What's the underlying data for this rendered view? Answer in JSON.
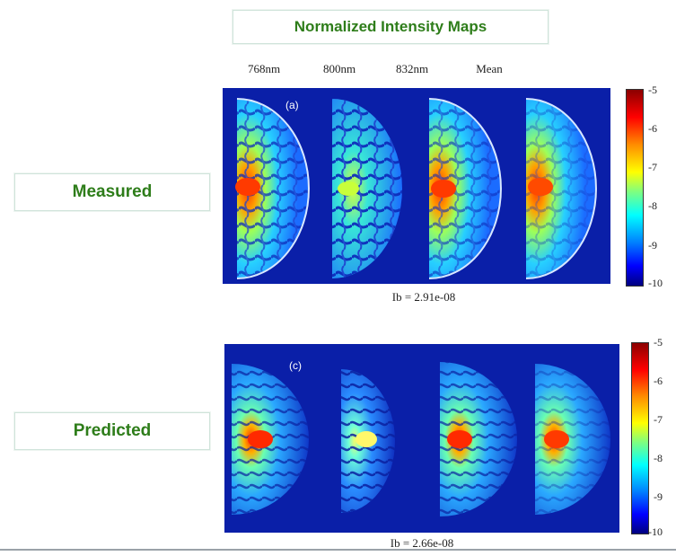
{
  "title": "Normalized Intensity Maps",
  "columns": [
    "768nm",
    "800nm",
    "832nm",
    "Mean"
  ],
  "rows": [
    {
      "label": "Measured",
      "panel_label": "(a)",
      "ib": "Ib = 2.91e-08"
    },
    {
      "label": "Predicted",
      "panel_label": "(c)",
      "ib": "Ib = 2.66e-08"
    }
  ],
  "colorbar_ticks": [
    "-5",
    "-6",
    "-7",
    "-8",
    "-9",
    "-10"
  ],
  "colors": {
    "panel_background": "#0a1fa8",
    "label_text": "#2e7d1a"
  }
}
